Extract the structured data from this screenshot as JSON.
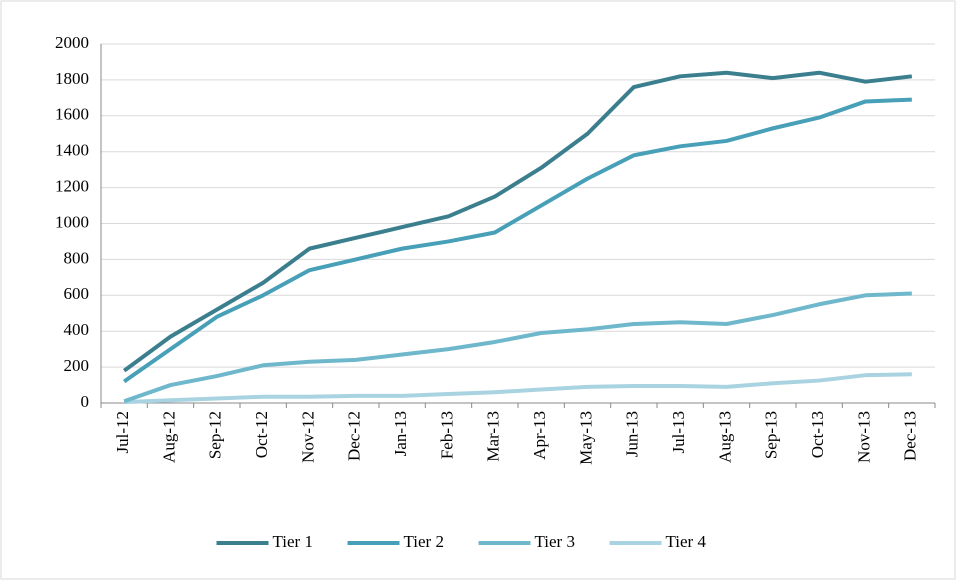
{
  "chart_data": {
    "type": "line",
    "categories": [
      "Jul-12",
      "Aug-12",
      "Sep-12",
      "Oct-12",
      "Nov-12",
      "Dec-12",
      "Jan-13",
      "Feb-13",
      "Mar-13",
      "Apr-13",
      "May-13",
      "Jun-13",
      "Jul-13",
      "Aug-13",
      "Sep-13",
      "Oct-13",
      "Nov-13",
      "Dec-13"
    ],
    "series": [
      {
        "name": "Tier 1",
        "color": "#3b7f8f",
        "values": [
          180,
          370,
          520,
          670,
          860,
          920,
          980,
          1040,
          1150,
          1310,
          1500,
          1760,
          1820,
          1840,
          1810,
          1840,
          1790,
          1820
        ]
      },
      {
        "name": "Tier 2",
        "color": "#47a0b8",
        "values": [
          120,
          300,
          480,
          600,
          740,
          800,
          860,
          900,
          950,
          1100,
          1250,
          1380,
          1430,
          1460,
          1530,
          1590,
          1680,
          1690
        ]
      },
      {
        "name": "Tier 3",
        "color": "#6fb8cc",
        "values": [
          10,
          100,
          150,
          210,
          230,
          240,
          270,
          300,
          340,
          390,
          410,
          440,
          450,
          440,
          490,
          550,
          600,
          610
        ]
      },
      {
        "name": "Tier 4",
        "color": "#a9d3e0",
        "values": [
          5,
          15,
          25,
          35,
          35,
          40,
          40,
          50,
          60,
          75,
          90,
          95,
          95,
          90,
          110,
          125,
          155,
          160
        ]
      }
    ],
    "ylim": [
      0,
      2000
    ],
    "yticks": [
      0,
      200,
      400,
      600,
      800,
      1000,
      1200,
      1400,
      1600,
      1800,
      2000
    ],
    "grid": true,
    "legend": "bottom"
  }
}
